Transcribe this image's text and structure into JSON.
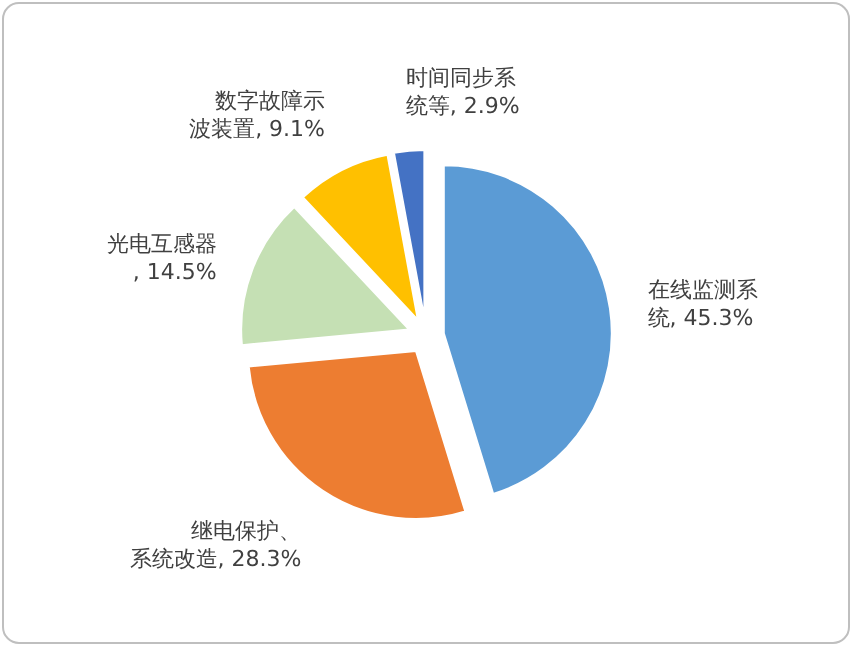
{
  "chart_data": {
    "type": "pie",
    "categories": [
      "在线监测系统",
      "继电保护、系统改造",
      "光电互感器",
      "数字故障示波装置",
      "时间同步系统等"
    ],
    "values": [
      45.3,
      28.3,
      14.5,
      9.1,
      2.9
    ],
    "colors": [
      "#5b9bd5",
      "#ed7d31",
      "#c5e0b4",
      "#ffc000",
      "#4472c4"
    ],
    "value_labels": [
      ", 45.3%",
      ", 28.3%",
      ", 14.5%",
      ", 9.1%",
      ", 2.9%"
    ]
  }
}
